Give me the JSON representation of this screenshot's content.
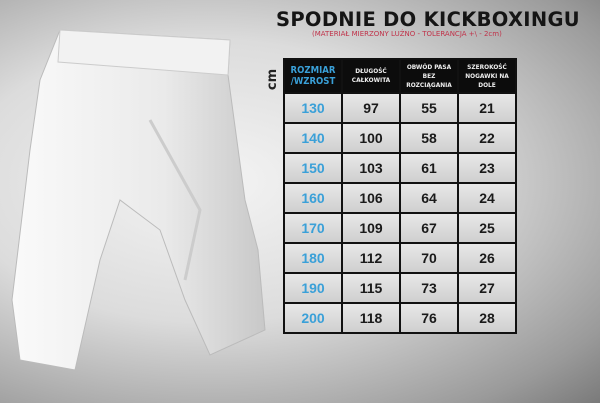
{
  "title": "SPODNIE DO KICKBOXINGU",
  "subtitle": "(MATERIAŁ MIERZONY LUŹNO - TOLERANCJA +\\ - 2cm)",
  "unit": "cm",
  "headers": [
    "ROZMIAR /WZROST",
    "DŁUGOŚĆ CAŁKOWITA",
    "OBWÓD PASA BEZ ROZCIĄGANIA",
    "SZEROKOŚĆ NOGAWKI NA DOLE"
  ],
  "rows": [
    [
      "130",
      "97",
      "55",
      "21"
    ],
    [
      "140",
      "100",
      "58",
      "22"
    ],
    [
      "150",
      "103",
      "61",
      "23"
    ],
    [
      "160",
      "106",
      "64",
      "24"
    ],
    [
      "170",
      "109",
      "67",
      "25"
    ],
    [
      "180",
      "112",
      "70",
      "26"
    ],
    [
      "190",
      "115",
      "73",
      "27"
    ],
    [
      "200",
      "118",
      "76",
      "28"
    ]
  ],
  "colors": {
    "size_text": "#3aa0d8",
    "header_bg": "#0c0c0c",
    "subtitle": "#c0334a"
  }
}
